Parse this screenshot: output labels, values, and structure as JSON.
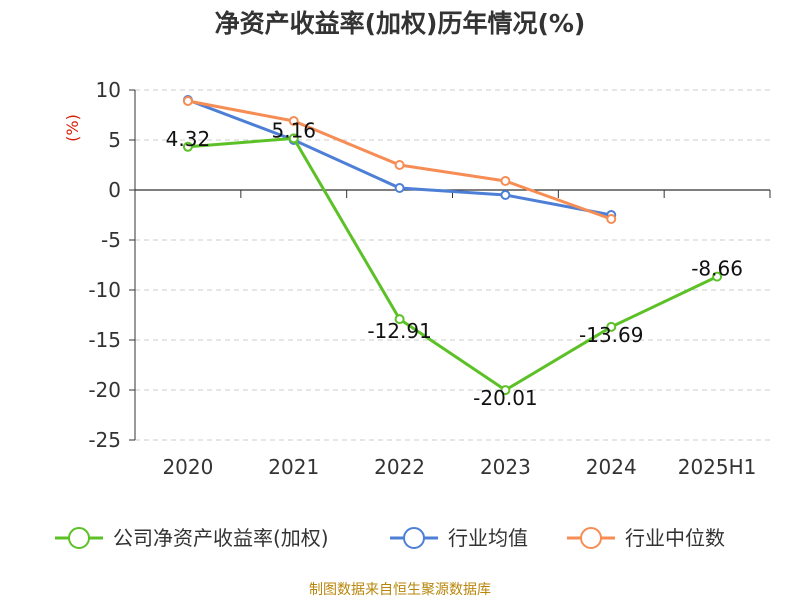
{
  "title": "净资产收益率(加权)历年情况(%)",
  "source": "制图数据来自恒生聚源数据库",
  "chart_data": {
    "type": "line",
    "title": "净资产收益率(加权)历年情况(%)",
    "ylabel": "(%)",
    "xlabel": "",
    "categories": [
      "2020",
      "2021",
      "2022",
      "2023",
      "2024",
      "2025H1"
    ],
    "ylim": [
      -25,
      10
    ],
    "yticks": [
      10,
      5,
      0,
      -5,
      -10,
      -15,
      -20,
      -25
    ],
    "grid": true,
    "legend_position": "bottom",
    "series": [
      {
        "name": "公司净资产收益率(加权)",
        "color": "#5cc126",
        "values": [
          4.32,
          5.16,
          -12.91,
          -20.01,
          -13.69,
          -8.66
        ],
        "labels": [
          "4.32",
          "5.16",
          "-12.91",
          "-20.01",
          "-13.69",
          "-8.66"
        ]
      },
      {
        "name": "行业均值",
        "color": "#4e7fd6",
        "values": [
          9.0,
          5.0,
          0.2,
          -0.5,
          -2.5,
          null
        ]
      },
      {
        "name": "行业中位数",
        "color": "#f58d55",
        "values": [
          8.9,
          6.9,
          2.5,
          0.9,
          -2.9,
          null
        ]
      }
    ]
  }
}
